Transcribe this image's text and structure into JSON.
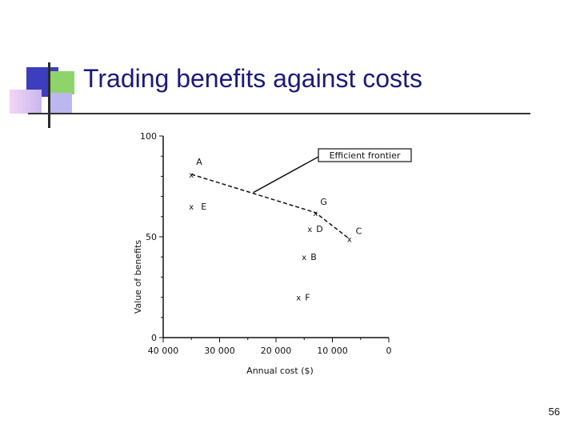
{
  "slide": {
    "title": "Trading benefits against costs",
    "page_number": "56",
    "colors": {
      "title": "#1a1a7e",
      "accent_blue": "#3d3dbf",
      "accent_green": "#8fd46b"
    }
  },
  "chart_data": {
    "type": "scatter",
    "title": "",
    "xlabel": "Annual cost  ($)",
    "ylabel": "Value of benefits",
    "xlim": [
      40000,
      0
    ],
    "ylim": [
      0,
      100
    ],
    "x_ticks": [
      {
        "value": 40000,
        "label": "40 000"
      },
      {
        "value": 30000,
        "label": "30 000"
      },
      {
        "value": 20000,
        "label": "20 000"
      },
      {
        "value": 10000,
        "label": "10 000"
      },
      {
        "value": 0,
        "label": "0"
      }
    ],
    "y_ticks": [
      {
        "value": 0,
        "label": "0"
      },
      {
        "value": 50,
        "label": "50"
      },
      {
        "value": 100,
        "label": "100"
      }
    ],
    "points": [
      {
        "name": "A",
        "x": 35000,
        "y": 81
      },
      {
        "name": "E",
        "x": 35000,
        "y": 65
      },
      {
        "name": "G",
        "x": 13000,
        "y": 62
      },
      {
        "name": "D",
        "x": 14000,
        "y": 54
      },
      {
        "name": "C",
        "x": 7000,
        "y": 49
      },
      {
        "name": "B",
        "x": 15000,
        "y": 40
      },
      {
        "name": "F",
        "x": 16000,
        "y": 20
      }
    ],
    "frontier": {
      "label": "Efficient frontier",
      "points": [
        {
          "x": 35000,
          "y": 81
        },
        {
          "x": 13000,
          "y": 62
        },
        {
          "x": 7000,
          "y": 49
        }
      ],
      "pointer_to": {
        "x": 24000,
        "y": 72
      }
    },
    "grid": false,
    "legend": "none"
  }
}
